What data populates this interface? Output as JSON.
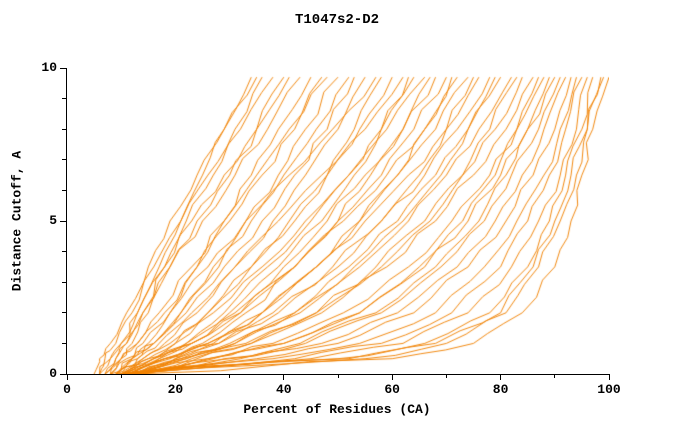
{
  "chart_data": {
    "type": "line",
    "title": "T1047s2-D2",
    "xlabel": "Percent of Residues (CA)",
    "ylabel": "Distance Cutoff, A",
    "xlim": [
      0,
      100
    ],
    "ylim": [
      0,
      10
    ],
    "xticks": [
      0,
      20,
      40,
      60,
      80,
      100
    ],
    "yticks": [
      0,
      5,
      10
    ],
    "x_minor_step": 10,
    "y_minor_step": 1,
    "grid": "off",
    "legend": "none",
    "line_color": "#f08200",
    "y_samples": [
      0,
      0.5,
      1,
      2,
      3.5,
      5,
      6.5,
      8,
      9.7
    ],
    "curves": [
      [
        6,
        8,
        10,
        13,
        17,
        21,
        25,
        29,
        34
      ],
      [
        7,
        9,
        11,
        14,
        18,
        22,
        27,
        31,
        36
      ],
      [
        6,
        7,
        9,
        12,
        16,
        21,
        26,
        32,
        38
      ],
      [
        8,
        10,
        12,
        15,
        19,
        24,
        30,
        35,
        40
      ],
      [
        7,
        9,
        11,
        14,
        19,
        25,
        31,
        37,
        43
      ],
      [
        9,
        12,
        15,
        19,
        24,
        29,
        34,
        39,
        45
      ],
      [
        8,
        10,
        13,
        17,
        23,
        29,
        35,
        41,
        48
      ],
      [
        10,
        13,
        16,
        21,
        27,
        33,
        39,
        44,
        50
      ],
      [
        9,
        12,
        16,
        21,
        28,
        34,
        40,
        46,
        52
      ],
      [
        10,
        14,
        18,
        24,
        31,
        38,
        44,
        50,
        55
      ],
      [
        8,
        11,
        14,
        19,
        26,
        33,
        41,
        49,
        57
      ],
      [
        11,
        15,
        20,
        26,
        34,
        41,
        48,
        54,
        60
      ],
      [
        9,
        13,
        17,
        23,
        31,
        39,
        47,
        55,
        62
      ],
      [
        12,
        17,
        22,
        29,
        37,
        45,
        52,
        58,
        64
      ],
      [
        10,
        15,
        20,
        27,
        36,
        44,
        52,
        59,
        66
      ],
      [
        11,
        17,
        23,
        31,
        40,
        48,
        55,
        62,
        68
      ],
      [
        12,
        18,
        25,
        33,
        42,
        50,
        58,
        64,
        70
      ],
      [
        10,
        16,
        23,
        32,
        42,
        51,
        59,
        66,
        72
      ],
      [
        13,
        20,
        27,
        36,
        46,
        54,
        61,
        68,
        74
      ],
      [
        11,
        18,
        26,
        36,
        46,
        55,
        63,
        70,
        76
      ],
      [
        12,
        20,
        28,
        38,
        49,
        58,
        66,
        72,
        78
      ],
      [
        13,
        22,
        31,
        42,
        52,
        61,
        68,
        74,
        80
      ],
      [
        11,
        21,
        31,
        43,
        54,
        63,
        70,
        76,
        82
      ],
      [
        14,
        24,
        34,
        46,
        57,
        66,
        73,
        79,
        84
      ],
      [
        12,
        23,
        34,
        47,
        59,
        68,
        75,
        81,
        86
      ],
      [
        13,
        26,
        38,
        51,
        63,
        71,
        78,
        83,
        88
      ],
      [
        10,
        26,
        40,
        54,
        66,
        74,
        80,
        85,
        90
      ],
      [
        12,
        30,
        44,
        58,
        69,
        77,
        82,
        87,
        91
      ],
      [
        11,
        32,
        47,
        61,
        72,
        79,
        84,
        88,
        92
      ],
      [
        13,
        35,
        50,
        64,
        74,
        81,
        86,
        90,
        93
      ],
      [
        10,
        38,
        54,
        68,
        77,
        83,
        88,
        91,
        94
      ],
      [
        12,
        42,
        58,
        71,
        80,
        85,
        89,
        92,
        95
      ],
      [
        9,
        45,
        62,
        74,
        82,
        87,
        91,
        94,
        96
      ],
      [
        11,
        50,
        66,
        78,
        85,
        89,
        92,
        95,
        97
      ],
      [
        10,
        55,
        70,
        81,
        87,
        91,
        94,
        96,
        98.5
      ],
      [
        12,
        60,
        75,
        84,
        90,
        93,
        95,
        97,
        100
      ],
      [
        5,
        6,
        8,
        11,
        15,
        19,
        24,
        29,
        35
      ],
      [
        6,
        8,
        10,
        13,
        18,
        23,
        29,
        35,
        41
      ],
      [
        7,
        10,
        13,
        18,
        24,
        30,
        36,
        42,
        47
      ],
      [
        8,
        12,
        16,
        22,
        29,
        36,
        42,
        48,
        53
      ],
      [
        9,
        14,
        19,
        26,
        34,
        42,
        48,
        53,
        58
      ],
      [
        10,
        16,
        22,
        30,
        39,
        47,
        53,
        58,
        63
      ],
      [
        9,
        16,
        23,
        32,
        42,
        50,
        56,
        62,
        67
      ],
      [
        11,
        18,
        26,
        36,
        46,
        54,
        61,
        66,
        71
      ],
      [
        10,
        19,
        28,
        39,
        50,
        58,
        65,
        70,
        75
      ],
      [
        12,
        21,
        30,
        42,
        53,
        62,
        69,
        74,
        79
      ],
      [
        11,
        22,
        33,
        46,
        58,
        67,
        73,
        78,
        83
      ],
      [
        13,
        27,
        40,
        54,
        65,
        73,
        79,
        83,
        87
      ],
      [
        12,
        29,
        43,
        57,
        68,
        76,
        81,
        85,
        89
      ],
      [
        11,
        52,
        68,
        80,
        86,
        90,
        93,
        96,
        99
      ]
    ]
  }
}
